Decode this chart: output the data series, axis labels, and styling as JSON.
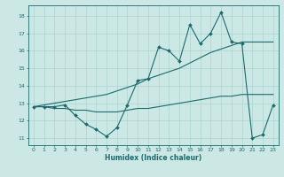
{
  "xlabel": "Humidex (Indice chaleur)",
  "bg_color": "#cce8e4",
  "line_color": "#1a6b6b",
  "grid_color": "#aad4d0",
  "x": [
    0,
    1,
    2,
    3,
    4,
    5,
    6,
    7,
    8,
    9,
    10,
    11,
    12,
    13,
    14,
    15,
    16,
    17,
    18,
    19,
    20,
    21,
    22,
    23
  ],
  "main_line": [
    12.8,
    12.8,
    12.8,
    12.9,
    12.3,
    11.8,
    11.5,
    11.1,
    11.6,
    12.9,
    14.3,
    14.4,
    16.2,
    16.0,
    15.4,
    17.5,
    16.4,
    17.0,
    18.2,
    16.5,
    16.4,
    11.0,
    11.2,
    12.9
  ],
  "upper_line": [
    12.8,
    12.9,
    13.0,
    13.1,
    13.2,
    13.3,
    13.4,
    13.5,
    13.7,
    13.9,
    14.1,
    14.4,
    14.6,
    14.8,
    15.0,
    15.3,
    15.6,
    15.9,
    16.1,
    16.3,
    16.5,
    16.5,
    16.5,
    16.5
  ],
  "lower_line": [
    12.8,
    12.8,
    12.7,
    12.7,
    12.6,
    12.6,
    12.5,
    12.5,
    12.5,
    12.6,
    12.7,
    12.7,
    12.8,
    12.9,
    13.0,
    13.1,
    13.2,
    13.3,
    13.4,
    13.4,
    13.5,
    13.5,
    13.5,
    13.5
  ],
  "xlim": [
    -0.5,
    23.5
  ],
  "ylim": [
    10.6,
    18.6
  ],
  "yticks": [
    11,
    12,
    13,
    14,
    15,
    16,
    17,
    18
  ],
  "xticks": [
    0,
    1,
    2,
    3,
    4,
    5,
    6,
    7,
    8,
    9,
    10,
    11,
    12,
    13,
    14,
    15,
    16,
    17,
    18,
    19,
    20,
    21,
    22,
    23
  ]
}
